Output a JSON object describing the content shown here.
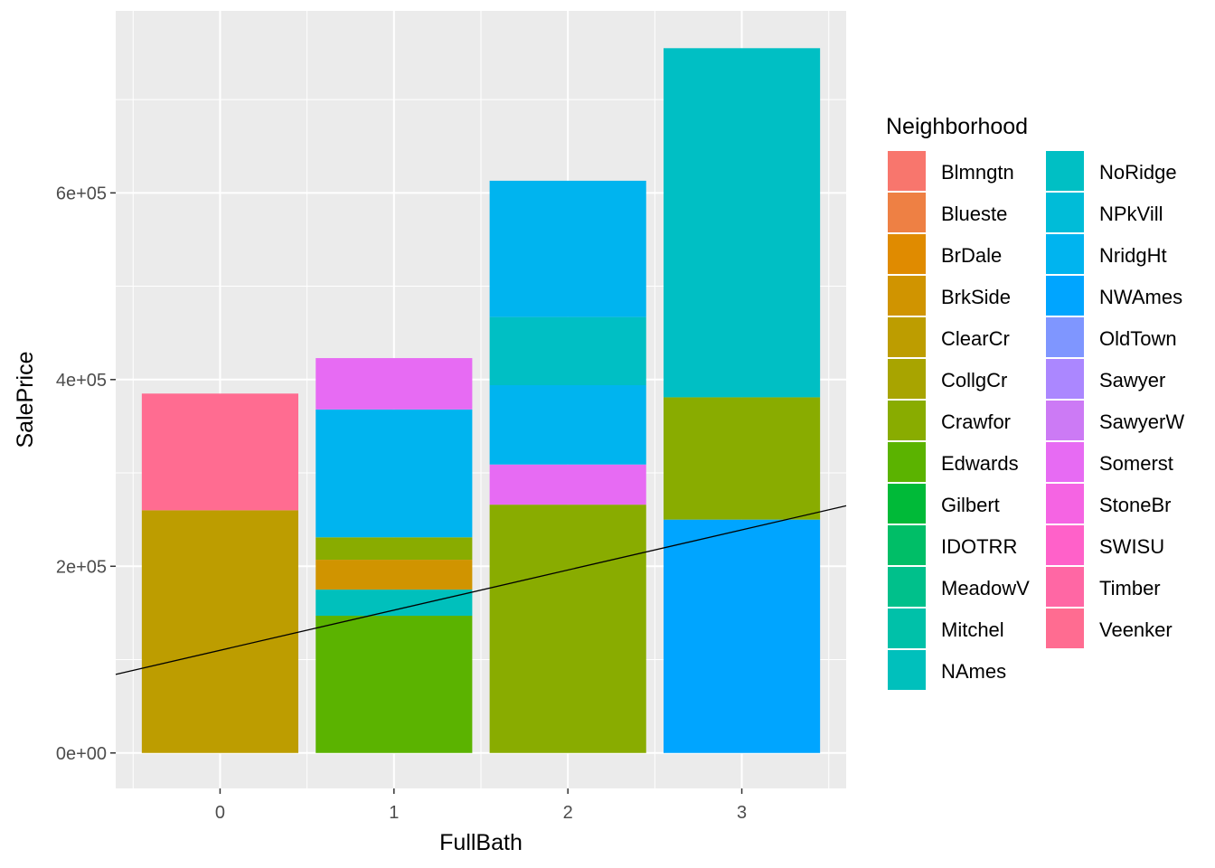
{
  "chart_data": {
    "type": "bar",
    "stacked": true,
    "xlabel": "FullBath",
    "ylabel": "SalePrice",
    "x_categories": [
      "0",
      "1",
      "2",
      "3"
    ],
    "ylim": [
      -38000,
      795000
    ],
    "y_ticks": [
      0,
      200000,
      400000,
      600000
    ],
    "y_tick_labels": [
      "0e+00",
      "2e+05",
      "4e+05",
      "6e+05"
    ],
    "grid": true,
    "legend_title": "Neighborhood",
    "legend_position": "right",
    "legend": [
      {
        "name": "Blmngtn",
        "color": "#F8766D"
      },
      {
        "name": "Blueste",
        "color": "#EE8044"
      },
      {
        "name": "BrDale",
        "color": "#E08B00"
      },
      {
        "name": "BrkSide",
        "color": "#D09400"
      },
      {
        "name": "ClearCr",
        "color": "#BD9D00"
      },
      {
        "name": "CollgCr",
        "color": "#A8A400"
      },
      {
        "name": "Crawfor",
        "color": "#89AC00"
      },
      {
        "name": "Edwards",
        "color": "#5BB300"
      },
      {
        "name": "Gilbert",
        "color": "#00BA38"
      },
      {
        "name": "IDOTRR",
        "color": "#00BE67"
      },
      {
        "name": "MeadowV",
        "color": "#00C08B"
      },
      {
        "name": "Mitchel",
        "color": "#00C1A9"
      },
      {
        "name": "NAmes",
        "color": "#00C0BC"
      },
      {
        "name": "NoRidge",
        "color": "#00BFC4"
      },
      {
        "name": "NPkVill",
        "color": "#00BCD8"
      },
      {
        "name": "NridgHt",
        "color": "#00B4EF"
      },
      {
        "name": "NWAmes",
        "color": "#00A5FF"
      },
      {
        "name": "OldTown",
        "color": "#7F96FF"
      },
      {
        "name": "Sawyer",
        "color": "#AB87FF"
      },
      {
        "name": "SawyerW",
        "color": "#CC7AF5"
      },
      {
        "name": "Somerst",
        "color": "#E76BF3"
      },
      {
        "name": "StoneBr",
        "color": "#F564E3"
      },
      {
        "name": "SWISU",
        "color": "#FF61C9"
      },
      {
        "name": "Timber",
        "color": "#FF67A4"
      },
      {
        "name": "Veenker",
        "color": "#FF6C91"
      }
    ],
    "bars": [
      {
        "x": "0",
        "segments": [
          {
            "neighborhood": "ClearCr",
            "from": 0,
            "to": 260000
          },
          {
            "neighborhood": "Veenker",
            "from": 260000,
            "to": 385000
          }
        ]
      },
      {
        "x": "1",
        "segments": [
          {
            "neighborhood": "Edwards",
            "from": 0,
            "to": 147000
          },
          {
            "neighborhood": "NAmes",
            "from": 147000,
            "to": 175000
          },
          {
            "neighborhood": "BrkSide",
            "from": 175000,
            "to": 207000
          },
          {
            "neighborhood": "Crawfor",
            "from": 207000,
            "to": 231000
          },
          {
            "neighborhood": "NridgHt",
            "from": 231000,
            "to": 368000
          },
          {
            "neighborhood": "Somerst",
            "from": 368000,
            "to": 423000
          }
        ]
      },
      {
        "x": "2",
        "segments": [
          {
            "neighborhood": "Crawfor",
            "from": 0,
            "to": 266000
          },
          {
            "neighborhood": "Somerst",
            "from": 266000,
            "to": 309000
          },
          {
            "neighborhood": "NridgHt",
            "from": 309000,
            "to": 394000
          },
          {
            "neighborhood": "NoRidge",
            "from": 394000,
            "to": 467000
          },
          {
            "neighborhood": "NridgHt",
            "from": 467000,
            "to": 613000
          }
        ]
      },
      {
        "x": "3",
        "segments": [
          {
            "neighborhood": "NWAmes",
            "from": 0,
            "to": 250000
          },
          {
            "neighborhood": "Crawfor",
            "from": 250000,
            "to": 381000
          },
          {
            "neighborhood": "NoRidge",
            "from": 381000,
            "to": 755000
          }
        ]
      }
    ],
    "trend_line": {
      "intercept": 110000,
      "slope": 43000,
      "color": "#000000"
    }
  }
}
